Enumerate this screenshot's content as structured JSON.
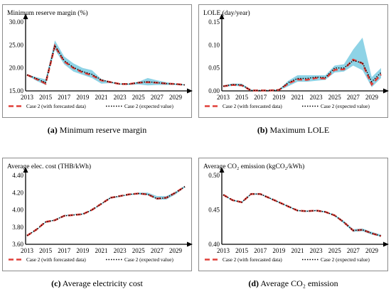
{
  "colors": {
    "band": "#8ed3e6",
    "forecast_line": "#e0403a",
    "expected_line": "#000000",
    "axis": "#000000",
    "frame": "#8c8c8c"
  },
  "legend": {
    "forecast": "Case 2 (with forecasted data)",
    "expected": "Case 2 (expected value)"
  },
  "captions": [
    {
      "label": "(a)",
      "text": "Minimum reserve margin"
    },
    {
      "label": "(b)",
      "text": "Maximum LOLE"
    },
    {
      "label": "(c)",
      "text": "Average electricity cost"
    },
    {
      "label": "(d)",
      "text": "Average CO₂ emission"
    }
  ],
  "chart_data": [
    {
      "type": "line",
      "title": "Minimum reserve margin (%)",
      "x": [
        2013,
        2014,
        2015,
        2016,
        2017,
        2018,
        2019,
        2020,
        2021,
        2022,
        2023,
        2024,
        2025,
        2026,
        2027,
        2028,
        2029,
        2030
      ],
      "xticks": [
        "2013",
        "2015",
        "2017",
        "2019",
        "2021",
        "2023",
        "2025",
        "2027",
        "2029"
      ],
      "yticks": [
        "15.00",
        "20.00",
        "25.00",
        "30.00"
      ],
      "ylim": [
        15,
        30
      ],
      "band_upper": [
        18.6,
        18.0,
        17.5,
        26.0,
        22.5,
        21.0,
        20.0,
        19.5,
        17.6,
        17.0,
        16.6,
        16.6,
        17.0,
        17.8,
        17.3,
        16.9,
        16.6,
        16.4
      ],
      "band_lower": [
        18.4,
        17.2,
        16.3,
        24.0,
        20.8,
        19.2,
        18.5,
        17.8,
        16.6,
        16.7,
        16.4,
        16.3,
        16.4,
        16.2,
        16.3,
        16.3,
        16.3,
        16.2
      ],
      "series": [
        {
          "name": "Case 2 (with forecasted data)",
          "values": [
            18.5,
            17.6,
            16.6,
            24.8,
            21.4,
            20.0,
            19.0,
            18.4,
            17.3,
            16.9,
            16.5,
            16.5,
            16.8,
            16.9,
            16.8,
            16.6,
            16.5,
            16.3
          ]
        },
        {
          "name": "Case 2 (expected value)",
          "values": [
            18.5,
            17.7,
            16.8,
            24.9,
            21.6,
            20.1,
            19.2,
            18.6,
            17.4,
            16.9,
            16.5,
            16.5,
            16.8,
            17.0,
            16.8,
            16.6,
            16.5,
            16.3
          ]
        }
      ]
    },
    {
      "type": "line",
      "title": "LOLE (day/year)",
      "x": [
        2013,
        2014,
        2015,
        2016,
        2017,
        2018,
        2019,
        2020,
        2021,
        2022,
        2023,
        2024,
        2025,
        2026,
        2027,
        2028,
        2029,
        2030
      ],
      "xticks": [
        "2013",
        "2015",
        "2017",
        "2019",
        "2021",
        "2023",
        "2025",
        "2027",
        "2029"
      ],
      "yticks": [
        "0.00",
        "0.05",
        "0.10",
        "0.15"
      ],
      "ylim": [
        0,
        0.15
      ],
      "band_upper": [
        0.012,
        0.016,
        0.016,
        0.003,
        0.002,
        0.002,
        0.003,
        0.022,
        0.034,
        0.034,
        0.034,
        0.034,
        0.055,
        0.058,
        0.09,
        0.116,
        0.03,
        0.05
      ],
      "band_lower": [
        0.008,
        0.011,
        0.01,
        0.001,
        0.001,
        0.001,
        0.001,
        0.01,
        0.02,
        0.02,
        0.022,
        0.024,
        0.04,
        0.042,
        0.055,
        0.045,
        0.008,
        0.028
      ],
      "series": [
        {
          "name": "Case 2 (with forecasted data)",
          "values": [
            0.01,
            0.013,
            0.012,
            0.001,
            0.001,
            0.001,
            0.002,
            0.016,
            0.025,
            0.024,
            0.028,
            0.027,
            0.046,
            0.047,
            0.068,
            0.06,
            0.014,
            0.036
          ]
        },
        {
          "name": "Case 2 (expected value)",
          "values": [
            0.01,
            0.014,
            0.013,
            0.001,
            0.001,
            0.001,
            0.002,
            0.018,
            0.027,
            0.027,
            0.03,
            0.029,
            0.05,
            0.05,
            0.066,
            0.061,
            0.02,
            0.04
          ]
        }
      ]
    },
    {
      "type": "line",
      "title": "Average elec. cost (THB/kWh)",
      "x": [
        2013,
        2014,
        2015,
        2016,
        2017,
        2018,
        2019,
        2020,
        2021,
        2022,
        2023,
        2024,
        2025,
        2026,
        2027,
        2028,
        2029,
        2030
      ],
      "xticks": [
        "2013",
        "2015",
        "2017",
        "2019",
        "2021",
        "2023",
        "2025",
        "2027",
        "2029"
      ],
      "yticks": [
        "3.60",
        "3.80",
        "4.00",
        "4.20",
        "4.40"
      ],
      "ylim": [
        3.6,
        4.4
      ],
      "band_upper": [
        3.71,
        3.77,
        3.86,
        3.89,
        3.94,
        3.95,
        3.96,
        4.0,
        4.07,
        4.15,
        4.16,
        4.18,
        4.2,
        4.2,
        4.16,
        4.16,
        4.21,
        4.28
      ],
      "band_lower": [
        3.7,
        3.76,
        3.85,
        3.88,
        3.93,
        3.94,
        3.95,
        3.99,
        4.06,
        4.13,
        4.15,
        4.17,
        4.18,
        4.17,
        4.12,
        4.12,
        4.18,
        4.26
      ],
      "series": [
        {
          "name": "Case 2 (with forecasted data)",
          "values": [
            3.7,
            3.77,
            3.86,
            3.88,
            3.93,
            3.94,
            3.95,
            4.0,
            4.07,
            4.14,
            4.16,
            4.18,
            4.19,
            4.18,
            4.13,
            4.14,
            4.2,
            4.27
          ]
        },
        {
          "name": "Case 2 (expected value)",
          "values": [
            3.7,
            3.77,
            3.86,
            3.88,
            3.93,
            3.94,
            3.95,
            4.0,
            4.07,
            4.14,
            4.16,
            4.18,
            4.19,
            4.18,
            4.13,
            4.14,
            4.2,
            4.27
          ]
        }
      ]
    },
    {
      "type": "line",
      "title": "Average CO₂ emission (kgCO₂/kWh)",
      "x": [
        2013,
        2014,
        2015,
        2016,
        2017,
        2018,
        2019,
        2020,
        2021,
        2022,
        2023,
        2024,
        2025,
        2026,
        2027,
        2028,
        2029,
        2030
      ],
      "xticks": [
        "2013",
        "2015",
        "2017",
        "2019",
        "2021",
        "2023",
        "2025",
        "2027",
        "2029"
      ],
      "yticks": [
        "0.40",
        "0.45",
        "0.50"
      ],
      "ylim": [
        0.4,
        0.5
      ],
      "band_upper": [
        0.472,
        0.465,
        0.462,
        0.474,
        0.474,
        0.468,
        0.462,
        0.456,
        0.45,
        0.449,
        0.45,
        0.448,
        0.443,
        0.434,
        0.422,
        0.423,
        0.418,
        0.414
      ],
      "band_lower": [
        0.471,
        0.463,
        0.46,
        0.472,
        0.472,
        0.466,
        0.46,
        0.454,
        0.448,
        0.447,
        0.448,
        0.446,
        0.441,
        0.43,
        0.418,
        0.419,
        0.414,
        0.411
      ],
      "series": [
        {
          "name": "Case 2 (with forecasted data)",
          "values": [
            0.472,
            0.464,
            0.461,
            0.473,
            0.473,
            0.467,
            0.461,
            0.455,
            0.449,
            0.448,
            0.449,
            0.447,
            0.442,
            0.432,
            0.42,
            0.421,
            0.416,
            0.412
          ]
        },
        {
          "name": "Case 2 (expected value)",
          "values": [
            0.472,
            0.464,
            0.461,
            0.473,
            0.473,
            0.467,
            0.461,
            0.455,
            0.449,
            0.448,
            0.449,
            0.447,
            0.442,
            0.432,
            0.42,
            0.421,
            0.416,
            0.412
          ]
        }
      ]
    }
  ]
}
